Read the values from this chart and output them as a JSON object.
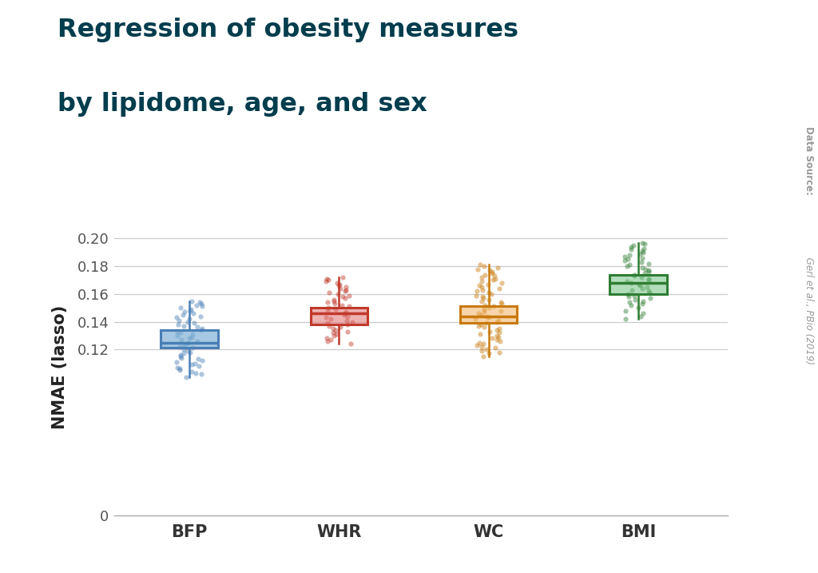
{
  "title_line1": "Regression of obesity measures",
  "title_line2": "by lipidome, age, and sex",
  "ylabel": "NMAE (lasso)",
  "xlabel_categories": [
    "BFP",
    "WHR",
    "WC",
    "BMI"
  ],
  "watermark_bold": "Data Source:",
  "watermark_normal": " Gerl et al., PBio (2019)",
  "ylim": [
    0,
    0.215
  ],
  "yticks": [
    0,
    0.12,
    0.14,
    0.16,
    0.18,
    0.2
  ],
  "ytick_labels": [
    "0",
    "0.12",
    "0.14",
    "0.16",
    "0.18",
    "0.20"
  ],
  "background_color": "#ffffff",
  "title_color": "#003d4d",
  "box_colors": [
    "#4a7fb5",
    "#c0392b",
    "#c8790a",
    "#2e7d32"
  ],
  "box_face_colors": [
    "#7aadd4aa",
    "#e0707088",
    "#f0b06088",
    "#70c08088"
  ],
  "dot_colors": [
    "#4a7fb5",
    "#c0392b",
    "#c8790a",
    "#2e7d32"
  ],
  "box_stats": {
    "BFP": {
      "q1": 0.121,
      "median": 0.125,
      "q3": 0.134,
      "whislo": 0.1,
      "whishi": 0.155
    },
    "WHR": {
      "q1": 0.138,
      "median": 0.146,
      "q3": 0.15,
      "whislo": 0.124,
      "whishi": 0.172
    },
    "WC": {
      "q1": 0.139,
      "median": 0.144,
      "q3": 0.151,
      "whislo": 0.115,
      "whishi": 0.181
    },
    "BMI": {
      "q1": 0.16,
      "median": 0.168,
      "q3": 0.174,
      "whislo": 0.142,
      "whishi": 0.197
    }
  },
  "scatter_data": {
    "BFP": [
      0.1,
      0.102,
      0.103,
      0.104,
      0.105,
      0.106,
      0.107,
      0.108,
      0.109,
      0.11,
      0.111,
      0.112,
      0.113,
      0.114,
      0.115,
      0.116,
      0.117,
      0.118,
      0.119,
      0.12,
      0.121,
      0.122,
      0.123,
      0.124,
      0.125,
      0.126,
      0.127,
      0.128,
      0.129,
      0.13,
      0.131,
      0.132,
      0.133,
      0.134,
      0.135,
      0.136,
      0.137,
      0.138,
      0.139,
      0.14,
      0.141,
      0.142,
      0.143,
      0.144,
      0.145,
      0.146,
      0.147,
      0.148,
      0.149,
      0.15,
      0.151,
      0.152,
      0.153,
      0.154,
      0.155
    ],
    "WHR": [
      0.124,
      0.126,
      0.127,
      0.128,
      0.13,
      0.131,
      0.132,
      0.133,
      0.134,
      0.135,
      0.136,
      0.137,
      0.138,
      0.139,
      0.14,
      0.141,
      0.142,
      0.143,
      0.144,
      0.145,
      0.146,
      0.147,
      0.148,
      0.149,
      0.15,
      0.151,
      0.152,
      0.153,
      0.154,
      0.155,
      0.156,
      0.157,
      0.158,
      0.159,
      0.16,
      0.161,
      0.162,
      0.163,
      0.164,
      0.165,
      0.166,
      0.167,
      0.168,
      0.169,
      0.17,
      0.171,
      0.172
    ],
    "WC": [
      0.115,
      0.117,
      0.118,
      0.119,
      0.12,
      0.121,
      0.122,
      0.123,
      0.124,
      0.125,
      0.126,
      0.127,
      0.128,
      0.129,
      0.13,
      0.131,
      0.132,
      0.133,
      0.134,
      0.135,
      0.136,
      0.137,
      0.138,
      0.139,
      0.14,
      0.141,
      0.142,
      0.143,
      0.144,
      0.145,
      0.146,
      0.147,
      0.148,
      0.149,
      0.15,
      0.151,
      0.152,
      0.153,
      0.154,
      0.155,
      0.156,
      0.157,
      0.158,
      0.159,
      0.16,
      0.161,
      0.162,
      0.163,
      0.164,
      0.165,
      0.166,
      0.167,
      0.168,
      0.169,
      0.17,
      0.171,
      0.172,
      0.173,
      0.174,
      0.175,
      0.176,
      0.177,
      0.178,
      0.179,
      0.18,
      0.181
    ],
    "BMI": [
      0.142,
      0.144,
      0.146,
      0.148,
      0.15,
      0.152,
      0.153,
      0.154,
      0.155,
      0.156,
      0.157,
      0.158,
      0.159,
      0.16,
      0.161,
      0.162,
      0.163,
      0.164,
      0.165,
      0.166,
      0.167,
      0.168,
      0.169,
      0.17,
      0.171,
      0.172,
      0.173,
      0.174,
      0.175,
      0.176,
      0.177,
      0.178,
      0.179,
      0.18,
      0.181,
      0.182,
      0.183,
      0.184,
      0.185,
      0.186,
      0.187,
      0.188,
      0.189,
      0.19,
      0.191,
      0.192,
      0.193,
      0.194,
      0.195,
      0.196,
      0.197
    ]
  }
}
